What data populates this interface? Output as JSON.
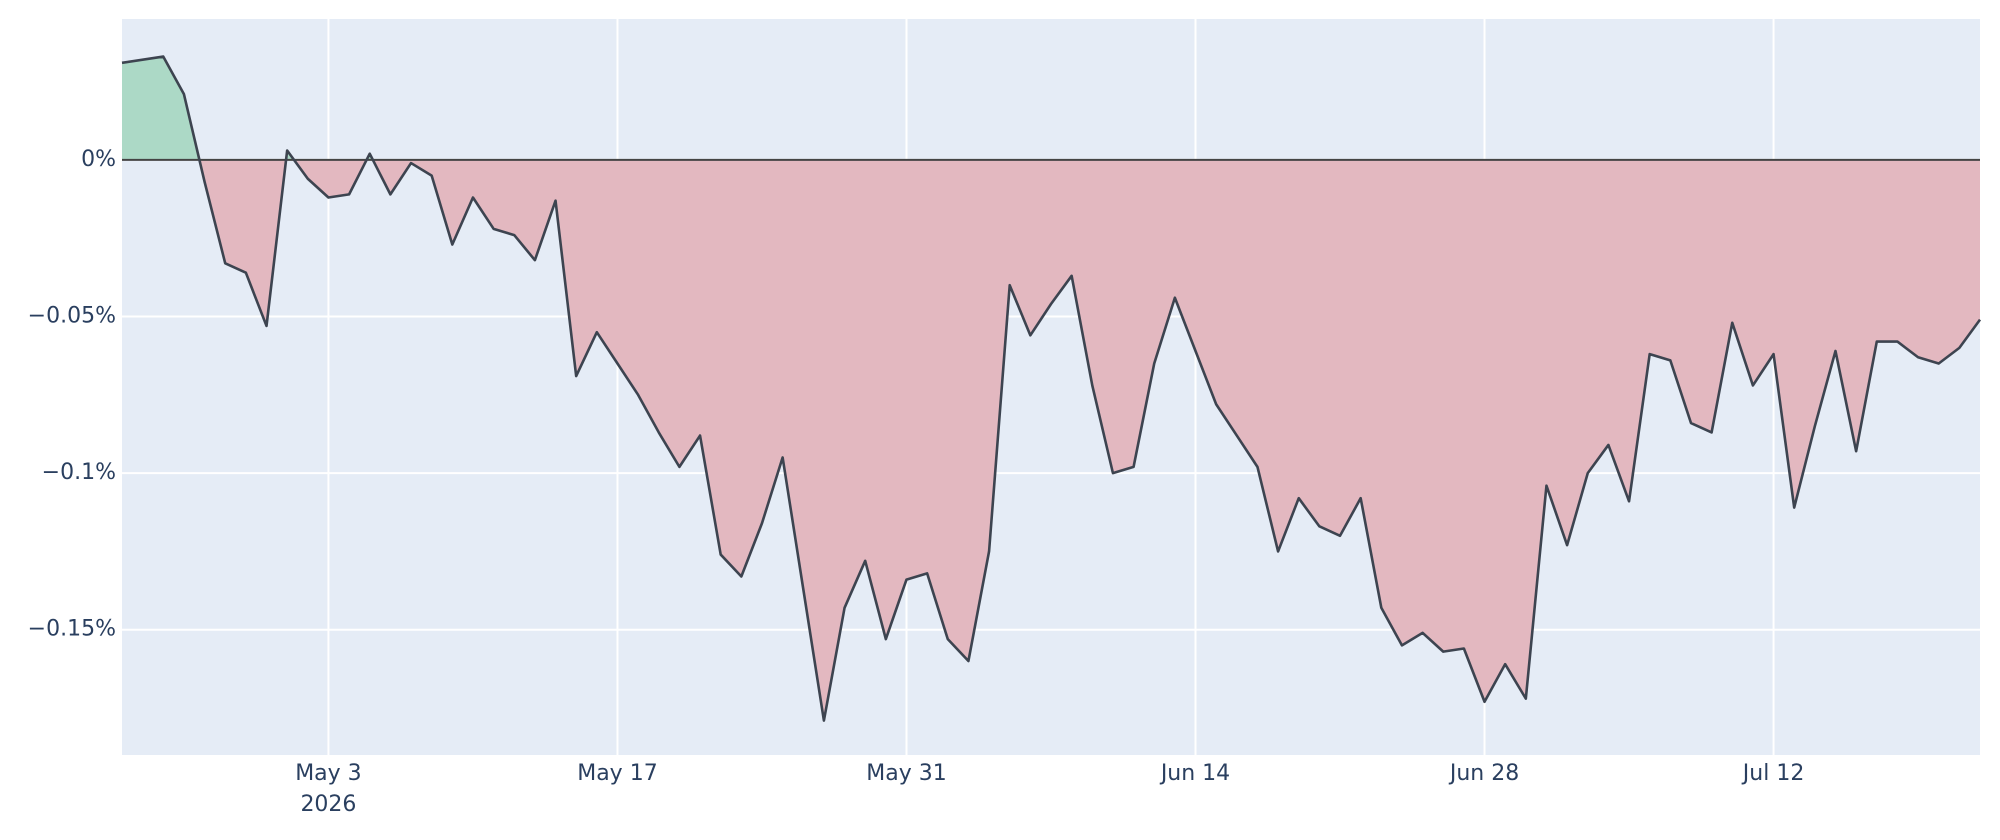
{
  "chart_data": {
    "type": "area",
    "x": [
      "2026-04-23",
      "2026-04-25",
      "2026-04-26",
      "2026-04-27",
      "2026-04-28",
      "2026-04-29",
      "2026-04-30",
      "2026-05-01",
      "2026-05-02",
      "2026-05-03",
      "2026-05-04",
      "2026-05-05",
      "2026-05-06",
      "2026-05-07",
      "2026-05-08",
      "2026-05-09",
      "2026-05-10",
      "2026-05-11",
      "2026-05-12",
      "2026-05-13",
      "2026-05-14",
      "2026-05-15",
      "2026-05-16",
      "2026-05-17",
      "2026-05-18",
      "2026-05-19",
      "2026-05-20",
      "2026-05-21",
      "2026-05-22",
      "2026-05-23",
      "2026-05-24",
      "2026-05-25",
      "2026-05-26",
      "2026-05-27",
      "2026-05-28",
      "2026-05-29",
      "2026-05-30",
      "2026-05-31",
      "2026-06-01",
      "2026-06-02",
      "2026-06-03",
      "2026-06-04",
      "2026-06-05",
      "2026-06-06",
      "2026-06-07",
      "2026-06-08",
      "2026-06-09",
      "2026-06-10",
      "2026-06-11",
      "2026-06-12",
      "2026-06-13",
      "2026-06-14",
      "2026-06-15",
      "2026-06-16",
      "2026-06-17",
      "2026-06-18",
      "2026-06-19",
      "2026-06-20",
      "2026-06-21",
      "2026-06-22",
      "2026-06-23",
      "2026-06-24",
      "2026-06-25",
      "2026-06-26",
      "2026-06-27",
      "2026-06-28",
      "2026-06-29",
      "2026-06-30",
      "2026-07-01",
      "2026-07-02",
      "2026-07-03",
      "2026-07-04",
      "2026-07-05",
      "2026-07-06",
      "2026-07-07",
      "2026-07-08",
      "2026-07-09",
      "2026-07-10",
      "2026-07-11",
      "2026-07-12",
      "2026-07-13",
      "2026-07-14",
      "2026-07-15",
      "2026-07-16",
      "2026-07-17",
      "2026-07-18",
      "2026-07-19",
      "2026-07-20",
      "2026-07-21",
      "2026-07-22"
    ],
    "series": [
      {
        "color": "#3d4450",
        "positive_fill": "#acd9c6",
        "negative_fill": "#e3b8c0",
        "values": [
          0.031,
          0.033,
          0.021,
          -0.007,
          -0.033,
          -0.036,
          -0.053,
          0.003,
          -0.006,
          -0.012,
          -0.011,
          0.002,
          -0.011,
          -0.001,
          -0.005,
          -0.027,
          -0.012,
          -0.022,
          -0.024,
          -0.032,
          -0.013,
          -0.069,
          -0.055,
          -0.065,
          -0.075,
          -0.087,
          -0.098,
          -0.088,
          -0.126,
          -0.133,
          -0.116,
          -0.095,
          -0.137,
          -0.179,
          -0.143,
          -0.128,
          -0.153,
          -0.134,
          -0.132,
          -0.153,
          -0.16,
          -0.125,
          -0.04,
          -0.056,
          -0.046,
          -0.037,
          -0.072,
          -0.1,
          -0.098,
          -0.065,
          -0.044,
          -0.061,
          -0.078,
          -0.088,
          -0.098,
          -0.125,
          -0.108,
          -0.117,
          -0.12,
          -0.108,
          -0.143,
          -0.155,
          -0.151,
          -0.157,
          -0.156,
          -0.173,
          -0.161,
          -0.172,
          -0.104,
          -0.123,
          -0.1,
          -0.091,
          -0.109,
          -0.062,
          -0.064,
          -0.084,
          -0.087,
          -0.052,
          -0.072,
          -0.062,
          -0.111,
          -0.085,
          -0.061,
          -0.093,
          -0.058,
          -0.058,
          -0.063,
          -0.065,
          -0.06,
          -0.051
        ]
      }
    ],
    "xlim": [
      "2026-04-23",
      "2026-07-22"
    ],
    "xticks": [
      {
        "value": "2026-05-03",
        "label": "May 3"
      },
      {
        "value": "2026-05-17",
        "label": "May 17"
      },
      {
        "value": "2026-05-31",
        "label": "May 31"
      },
      {
        "value": "2026-06-14",
        "label": "Jun 14"
      },
      {
        "value": "2026-06-28",
        "label": "Jun 28"
      },
      {
        "value": "2026-07-12",
        "label": "Jul 12"
      }
    ],
    "xtick_year_label": "2026",
    "ylim": [
      -0.19,
      0.045
    ],
    "yticks": [
      {
        "value": 0,
        "label": "0%"
      },
      {
        "value": -0.05,
        "label": "−0.05%"
      },
      {
        "value": -0.1,
        "label": "−0.1%"
      },
      {
        "value": -0.15,
        "label": "−0.15%"
      }
    ],
    "grid": true,
    "background": "#e5ecf6"
  }
}
